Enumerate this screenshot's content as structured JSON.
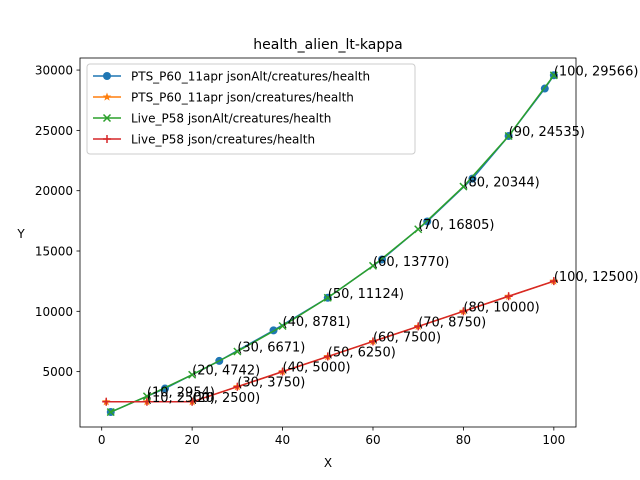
{
  "chart_data": {
    "type": "line",
    "title": "health_alien_lt-kappa",
    "xlabel": "X",
    "ylabel": "Y",
    "xlim": [
      -4.8,
      104.9
    ],
    "ylim": [
      410,
      31000
    ],
    "xticks": [
      0,
      20,
      40,
      60,
      80,
      100
    ],
    "yticks": [
      5000,
      10000,
      15000,
      20000,
      25000,
      30000
    ],
    "legend_position": "upper-left",
    "colors": {
      "blue": "#1f77b4",
      "orange": "#ff7f0e",
      "green": "#2ca02c",
      "red": "#d62728"
    },
    "series": [
      {
        "name": "PTS_P60_11apr jsonAlt/creatures/health",
        "color": "#1f77b4",
        "marker": "circle",
        "x": [
          2,
          14,
          26,
          38,
          50,
          62,
          72,
          82,
          90,
          98,
          100
        ],
        "y": [
          1650,
          3600,
          5890,
          8420,
          11124,
          14300,
          17450,
          21000,
          24535,
          28470,
          29566
        ]
      },
      {
        "name": "PTS_P60_11apr json/creatures/health",
        "color": "#ff7f0e",
        "marker": "star",
        "x": [
          1,
          10,
          20,
          30,
          40,
          50,
          60,
          70,
          80,
          90,
          100
        ],
        "y": [
          2500,
          2500,
          2500,
          3750,
          5000,
          6250,
          7500,
          8750,
          10000,
          11250,
          12500
        ]
      },
      {
        "name": "Live_P58 jsonAlt/creatures/health",
        "color": "#2ca02c",
        "marker": "x",
        "x": [
          2,
          10,
          20,
          30,
          40,
          50,
          60,
          70,
          80,
          90,
          100
        ],
        "y": [
          1650,
          2954,
          4742,
          6671,
          8781,
          11124,
          13770,
          16805,
          20344,
          24535,
          29566
        ]
      },
      {
        "name": "Live_P58 json/creatures/health",
        "color": "#d62728",
        "marker": "plus",
        "x": [
          1,
          10,
          20,
          30,
          40,
          50,
          60,
          70,
          80,
          90,
          100
        ],
        "y": [
          2500,
          2500,
          2500,
          3750,
          5000,
          6250,
          7500,
          8750,
          10000,
          11250,
          12500
        ]
      }
    ],
    "annotations": [
      {
        "text": "(10, 2954)",
        "x": 10,
        "y": 2954
      },
      {
        "text": "(20, 4742)",
        "x": 20,
        "y": 4742
      },
      {
        "text": "(30, 6671)",
        "x": 30,
        "y": 6671
      },
      {
        "text": "(40, 8781)",
        "x": 40,
        "y": 8781
      },
      {
        "text": "(50, 11124)",
        "x": 50,
        "y": 11124
      },
      {
        "text": "(60, 13770)",
        "x": 60,
        "y": 13770
      },
      {
        "text": "(70, 16805)",
        "x": 70,
        "y": 16805
      },
      {
        "text": "(80, 20344)",
        "x": 80,
        "y": 20344
      },
      {
        "text": "(90, 24535)",
        "x": 90,
        "y": 24535
      },
      {
        "text": "(100, 29566)",
        "x": 100,
        "y": 29566
      },
      {
        "text": "(10, 2500)",
        "x": 10,
        "y": 2500
      },
      {
        "text": "(20, 2500)",
        "x": 20,
        "y": 2500
      },
      {
        "text": "(30, 3750)",
        "x": 30,
        "y": 3750
      },
      {
        "text": "(40, 5000)",
        "x": 40,
        "y": 5000
      },
      {
        "text": "(50, 6250)",
        "x": 50,
        "y": 6250
      },
      {
        "text": "(60, 7500)",
        "x": 60,
        "y": 7500
      },
      {
        "text": "(70, 8750)",
        "x": 70,
        "y": 8750
      },
      {
        "text": "(80, 10000)",
        "x": 80,
        "y": 10000
      },
      {
        "text": "(100, 12500)",
        "x": 100,
        "y": 12500
      }
    ]
  }
}
